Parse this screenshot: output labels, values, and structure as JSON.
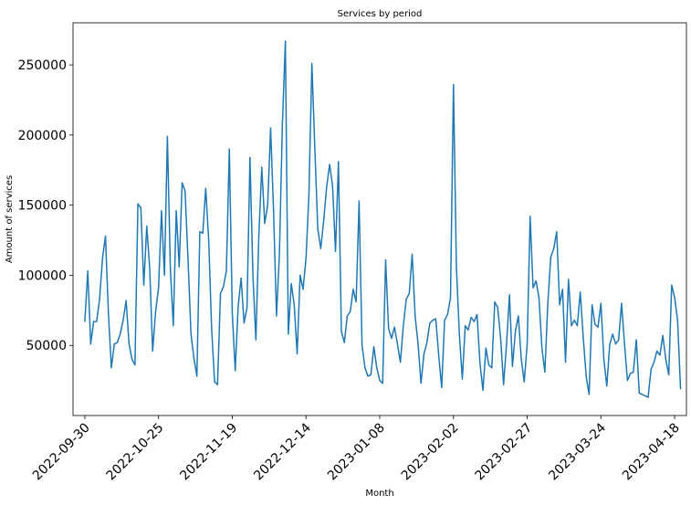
{
  "chart_data": {
    "type": "line",
    "title": "Services by period",
    "xlabel": "Month",
    "ylabel": "Amount of services",
    "ylim": [
      0,
      280000
    ],
    "xlim": [
      "2022-09-26",
      "2023-04-22"
    ],
    "grid": false,
    "legend": "none",
    "color": "#1f77b4",
    "x_ticks": [
      "2022-09-30",
      "2022-10-25",
      "2022-11-19",
      "2022-12-14",
      "2023-01-08",
      "2023-02-02",
      "2023-02-27",
      "2023-03-24",
      "2023-04-18"
    ],
    "y_ticks": [
      50000,
      100000,
      150000,
      200000,
      250000
    ],
    "y_tick_labels": [
      "50000",
      "100000",
      "150000",
      "200000",
      "250000"
    ],
    "series": [
      {
        "start": "2022-09-30",
        "step_days": 1,
        "values": [
          67000,
          103000,
          51000,
          67000,
          67000,
          83000,
          112000,
          128000,
          73000,
          34000,
          51000,
          52000,
          58000,
          68000,
          82000,
          51000,
          40000,
          36000,
          151000,
          148000,
          93000,
          135000,
          105000,
          46000,
          74000,
          91000,
          146000,
          100000,
          199000,
          105000,
          64000,
          146000,
          106000,
          166000,
          160000,
          111000,
          58000,
          41000,
          28000,
          131000,
          130000,
          162000,
          125000,
          62000,
          24000,
          22000,
          87000,
          92000,
          103000,
          190000,
          73000,
          32000,
          78000,
          98000,
          66000,
          77000,
          184000,
          100000,
          54000,
          128000,
          177000,
          137000,
          150000,
          205000,
          146000,
          71000,
          116000,
          208000,
          267000,
          58000,
          94000,
          79000,
          44000,
          100000,
          90000,
          112000,
          158000,
          251000,
          190000,
          133000,
          119000,
          139000,
          163000,
          179000,
          164000,
          117000,
          181000,
          60000,
          52000,
          71000,
          74000,
          90000,
          81000,
          153000,
          50000,
          34000,
          28000,
          29000,
          49000,
          34000,
          25000,
          23000,
          111000,
          62000,
          55000,
          63000,
          51000,
          38000,
          64000,
          83000,
          87000,
          115000,
          71000,
          51000,
          23000,
          44000,
          52000,
          66000,
          68000,
          69000,
          43000,
          20000,
          68000,
          72000,
          84000,
          236000,
          106000,
          58000,
          26000,
          64000,
          61000,
          70000,
          67000,
          72000,
          37000,
          18000,
          48000,
          36000,
          34000,
          81000,
          77000,
          55000,
          22000,
          51000,
          86000,
          35000,
          60000,
          71000,
          40000,
          24000,
          51000,
          142000,
          91000,
          96000,
          84000,
          48000,
          31000,
          80000,
          113000,
          119000,
          131000,
          79000,
          90000,
          38000,
          97000,
          64000,
          68000,
          64000,
          88000,
          56000,
          28000,
          15000,
          79000,
          65000,
          63000,
          80000,
          40000,
          21000,
          51000,
          58000,
          51000,
          54000,
          80000,
          51000,
          25000,
          30000,
          31000,
          54000,
          16000,
          15000,
          14000,
          13000,
          33000,
          38000,
          46000,
          43000,
          57000,
          40000,
          29000,
          93000,
          84000,
          68000,
          19000
        ]
      }
    ]
  }
}
